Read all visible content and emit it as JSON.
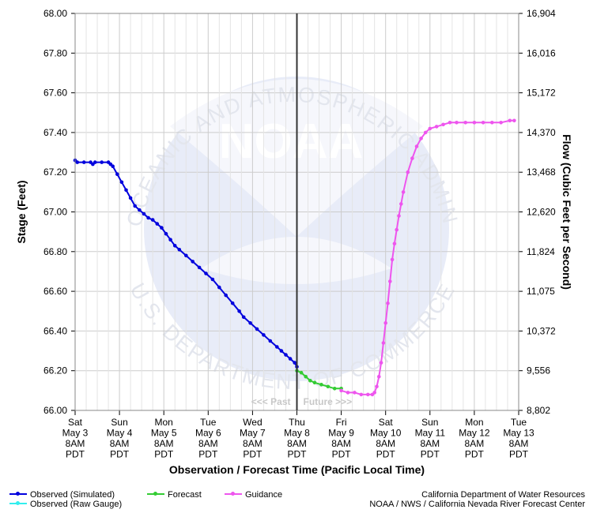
{
  "chart_data": {
    "type": "line",
    "xlabel": "Observation / Forecast Time (Pacific Local Time)",
    "ylabel": "Stage (Feet)",
    "y2label": "Flow (Cubic Feet per Second)",
    "ylim": [
      66.0,
      68.0
    ],
    "xlim": [
      0,
      10
    ],
    "y_ticks": [
      "68.00",
      "67.80",
      "67.60",
      "67.40",
      "67.20",
      "67.00",
      "66.80",
      "66.60",
      "66.40",
      "66.20",
      "66.00"
    ],
    "y2_ticks": [
      "16,904",
      "16,016",
      "15,172",
      "14,370",
      "13,468",
      "12,620",
      "11,824",
      "11,075",
      "10,372",
      "9,556",
      "8,802"
    ],
    "x_ticks": [
      {
        "day": "Sat",
        "date": "May 3",
        "time": "8AM",
        "tz": "PDT"
      },
      {
        "day": "Sun",
        "date": "May 4",
        "time": "8AM",
        "tz": "PDT"
      },
      {
        "day": "Mon",
        "date": "May 5",
        "time": "8AM",
        "tz": "PDT"
      },
      {
        "day": "Tue",
        "date": "May 6",
        "time": "8AM",
        "tz": "PDT"
      },
      {
        "day": "Wed",
        "date": "May 7",
        "time": "8AM",
        "tz": "PDT"
      },
      {
        "day": "Thu",
        "date": "May 8",
        "time": "8AM",
        "tz": "PDT"
      },
      {
        "day": "Fri",
        "date": "May 9",
        "time": "8AM",
        "tz": "PDT"
      },
      {
        "day": "Sat",
        "date": "May 10",
        "time": "8AM",
        "tz": "PDT"
      },
      {
        "day": "Sun",
        "date": "May 11",
        "time": "8AM",
        "tz": "PDT"
      },
      {
        "day": "Mon",
        "date": "May 12",
        "time": "8AM",
        "tz": "PDT"
      },
      {
        "day": "Tue",
        "date": "May 13",
        "time": "8AM",
        "tz": "PDT"
      }
    ],
    "now_x": 5.0,
    "past_label": "<<< Past",
    "future_label": "Future >>>",
    "series": [
      {
        "name": "Observed (Simulated)",
        "color": "#0000dd",
        "points": [
          [
            0,
            67.26
          ],
          [
            0.05,
            67.25
          ],
          [
            0.2,
            67.25
          ],
          [
            0.35,
            67.25
          ],
          [
            0.4,
            67.24
          ],
          [
            0.45,
            67.25
          ],
          [
            0.6,
            67.25
          ],
          [
            0.75,
            67.25
          ],
          [
            0.8,
            67.24
          ],
          [
            0.85,
            67.23
          ],
          [
            0.95,
            67.19
          ],
          [
            1.05,
            67.15
          ],
          [
            1.15,
            67.11
          ],
          [
            1.25,
            67.07
          ],
          [
            1.35,
            67.03
          ],
          [
            1.45,
            67.01
          ],
          [
            1.55,
            66.99
          ],
          [
            1.65,
            66.97
          ],
          [
            1.75,
            66.96
          ],
          [
            1.85,
            66.94
          ],
          [
            1.95,
            66.92
          ],
          [
            2.05,
            66.89
          ],
          [
            2.15,
            66.86
          ],
          [
            2.25,
            66.83
          ],
          [
            2.35,
            66.81
          ],
          [
            2.5,
            66.78
          ],
          [
            2.65,
            66.75
          ],
          [
            2.8,
            66.72
          ],
          [
            2.95,
            66.69
          ],
          [
            3.1,
            66.66
          ],
          [
            3.25,
            66.62
          ],
          [
            3.4,
            66.58
          ],
          [
            3.55,
            66.54
          ],
          [
            3.7,
            66.5
          ],
          [
            3.8,
            66.47
          ],
          [
            3.95,
            66.44
          ],
          [
            4.1,
            66.41
          ],
          [
            4.25,
            66.38
          ],
          [
            4.4,
            66.35
          ],
          [
            4.55,
            66.32
          ],
          [
            4.65,
            66.3
          ],
          [
            4.75,
            66.28
          ],
          [
            4.85,
            66.26
          ],
          [
            4.95,
            66.24
          ],
          [
            5.0,
            66.22
          ]
        ]
      },
      {
        "name": "Observed (Raw Gauge)",
        "color": "#33eeee",
        "points": []
      },
      {
        "name": "Forecast",
        "color": "#33cc33",
        "points": [
          [
            5.0,
            66.2
          ],
          [
            5.1,
            66.19
          ],
          [
            5.2,
            66.17
          ],
          [
            5.3,
            66.15
          ],
          [
            5.4,
            66.14
          ],
          [
            5.55,
            66.13
          ],
          [
            5.7,
            66.12
          ],
          [
            5.85,
            66.11
          ],
          [
            6.0,
            66.11
          ]
        ]
      },
      {
        "name": "Guidance",
        "color": "#ee55ee",
        "points": [
          [
            6.0,
            66.1
          ],
          [
            6.15,
            66.09
          ],
          [
            6.3,
            66.09
          ],
          [
            6.45,
            66.08
          ],
          [
            6.6,
            66.08
          ],
          [
            6.7,
            66.08
          ],
          [
            6.75,
            66.09
          ],
          [
            6.8,
            66.12
          ],
          [
            6.85,
            66.17
          ],
          [
            6.9,
            66.24
          ],
          [
            6.95,
            66.34
          ],
          [
            7.0,
            66.44
          ],
          [
            7.05,
            66.54
          ],
          [
            7.1,
            66.65
          ],
          [
            7.15,
            66.76
          ],
          [
            7.2,
            66.84
          ],
          [
            7.25,
            66.91
          ],
          [
            7.3,
            66.98
          ],
          [
            7.35,
            67.04
          ],
          [
            7.4,
            67.1
          ],
          [
            7.5,
            67.2
          ],
          [
            7.6,
            67.27
          ],
          [
            7.7,
            67.33
          ],
          [
            7.8,
            67.37
          ],
          [
            7.9,
            67.4
          ],
          [
            8.0,
            67.42
          ],
          [
            8.15,
            67.43
          ],
          [
            8.3,
            67.44
          ],
          [
            8.45,
            67.45
          ],
          [
            8.6,
            67.45
          ],
          [
            8.8,
            67.45
          ],
          [
            9.0,
            67.45
          ],
          [
            9.2,
            67.45
          ],
          [
            9.4,
            67.45
          ],
          [
            9.6,
            67.45
          ],
          [
            9.8,
            67.46
          ],
          [
            9.9,
            67.46
          ]
        ]
      }
    ]
  },
  "legend": [
    {
      "label": "Observed (Simulated)",
      "color": "#0000dd"
    },
    {
      "label": "Observed (Raw Gauge)",
      "color": "#33eeee"
    },
    {
      "label": "Forecast",
      "color": "#33cc33"
    },
    {
      "label": "Guidance",
      "color": "#ee55ee"
    }
  ],
  "credits": {
    "line1": "California Department of Water Resources",
    "line2": "NOAA / NWS / California Nevada River Forecast Center"
  },
  "watermark": {
    "logo_text": "NOAA",
    "top_arc": "NATIONAL OCEANIC AND ATMOSPHERIC ADMINISTRATION",
    "bottom_arc": "U.S. DEPARTMENT OF COMMERCE"
  },
  "colors": {
    "grid": "#cccccc",
    "now_line": "#333333",
    "watermark": "#e2e8f7"
  }
}
